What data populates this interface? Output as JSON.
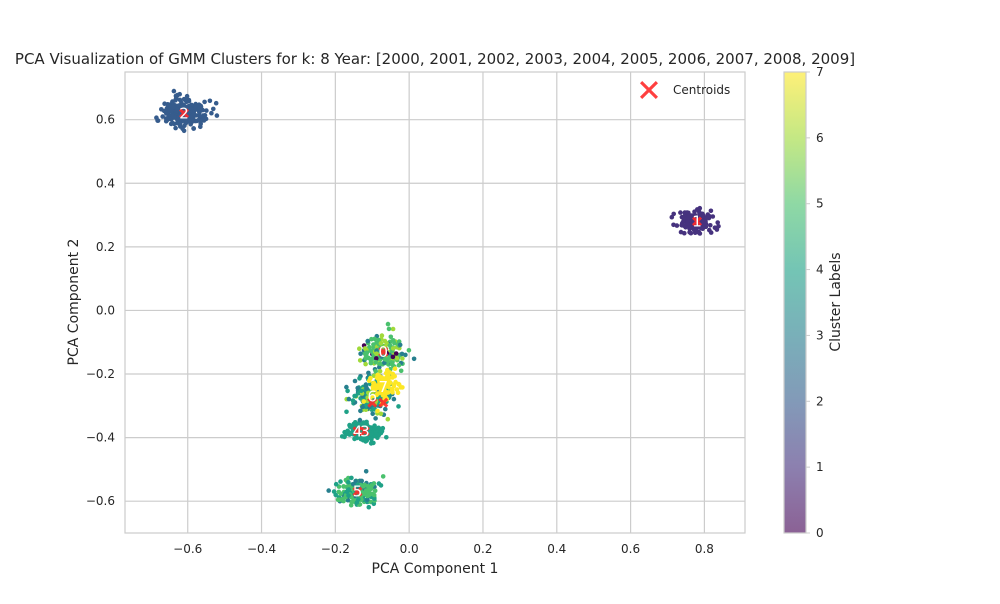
{
  "chart_data": {
    "type": "scatter",
    "title": "PCA Visualization of GMM Clusters for k: 8 Year: [2000, 2001, 2002, 2003, 2004, 2005, 2006, 2007, 2008, 2009]",
    "xlabel": "PCA Component 1",
    "ylabel": "PCA Component 2",
    "xlim": [
      -0.77,
      0.91
    ],
    "ylim": [
      -0.7,
      0.75
    ],
    "xticks": [
      -0.6,
      -0.4,
      -0.2,
      0.0,
      0.2,
      0.4,
      0.6,
      0.8
    ],
    "yticks": [
      -0.6,
      -0.4,
      -0.2,
      0.0,
      0.2,
      0.4,
      0.6
    ],
    "xtick_labels": [
      "−0.6",
      "−0.4",
      "−0.2",
      "0.0",
      "0.2",
      "0.4",
      "0.6",
      "0.8"
    ],
    "ytick_labels": [
      "−0.6",
      "−0.4",
      "−0.2",
      "0.0",
      "0.2",
      "0.4",
      "0.6"
    ],
    "grid": true,
    "legend": {
      "placement": "top-right",
      "entries": [
        "Centroids"
      ]
    },
    "colorbar": {
      "label": "Cluster Labels",
      "range": [
        0,
        7
      ],
      "ticks": [
        0,
        1,
        2,
        3,
        4,
        5,
        6,
        7
      ],
      "colormap": "viridis"
    },
    "clusters": [
      {
        "label": "0",
        "x": -0.07,
        "y": -0.13,
        "sx": 0.03,
        "sy": 0.03,
        "n": 170,
        "mix": [
          [
            5,
            0.6
          ],
          [
            6,
            0.2
          ],
          [
            3,
            0.15
          ],
          [
            0,
            0.05
          ]
        ]
      },
      {
        "label": "1",
        "x": 0.78,
        "y": 0.28,
        "sx": 0.022,
        "sy": 0.016,
        "n": 140,
        "mix": [
          [
            1,
            1.0
          ]
        ]
      },
      {
        "label": "2",
        "x": -0.61,
        "y": 0.62,
        "sx": 0.028,
        "sy": 0.02,
        "n": 260,
        "mix": [
          [
            2,
            1.0
          ]
        ]
      },
      {
        "label": "3",
        "x": -0.12,
        "y": -0.38,
        "sx": 0.025,
        "sy": 0.014,
        "n": 190,
        "mix": [
          [
            4,
            1.0
          ]
        ]
      },
      {
        "label": "4",
        "x": -0.14,
        "y": -0.38,
        "sx": 0.01,
        "sy": 0.008,
        "n": 40,
        "mix": [
          [
            4,
            1.0
          ]
        ]
      },
      {
        "label": "5",
        "x": -0.14,
        "y": -0.57,
        "sx": 0.028,
        "sy": 0.02,
        "n": 200,
        "mix": [
          [
            5,
            0.5
          ],
          [
            4,
            0.3
          ],
          [
            3,
            0.2
          ]
        ]
      },
      {
        "label": "6",
        "x": -0.1,
        "y": -0.27,
        "sx": 0.03,
        "sy": 0.028,
        "n": 170,
        "mix": [
          [
            4,
            0.5
          ],
          [
            6,
            0.25
          ],
          [
            3,
            0.25
          ]
        ]
      },
      {
        "label": "7",
        "x": -0.07,
        "y": -0.24,
        "sx": 0.018,
        "sy": 0.025,
        "n": 90,
        "mix": [
          [
            7,
            1.0
          ]
        ]
      }
    ],
    "centroids": [
      {
        "x": -0.07,
        "y": -0.13
      },
      {
        "x": 0.78,
        "y": 0.28
      },
      {
        "x": -0.61,
        "y": 0.62
      },
      {
        "x": -0.12,
        "y": -0.38
      },
      {
        "x": -0.14,
        "y": -0.38
      },
      {
        "x": -0.14,
        "y": -0.57
      },
      {
        "x": -0.1,
        "y": -0.29
      },
      {
        "x": -0.07,
        "y": -0.29
      }
    ],
    "colors": {
      "centroid": "#ff2a2a",
      "grid": "#cccccc",
      "axis_bg": "#ffffff",
      "spine": "#cccccc",
      "text": "#262626",
      "cluster_label": "#ffffff"
    }
  }
}
